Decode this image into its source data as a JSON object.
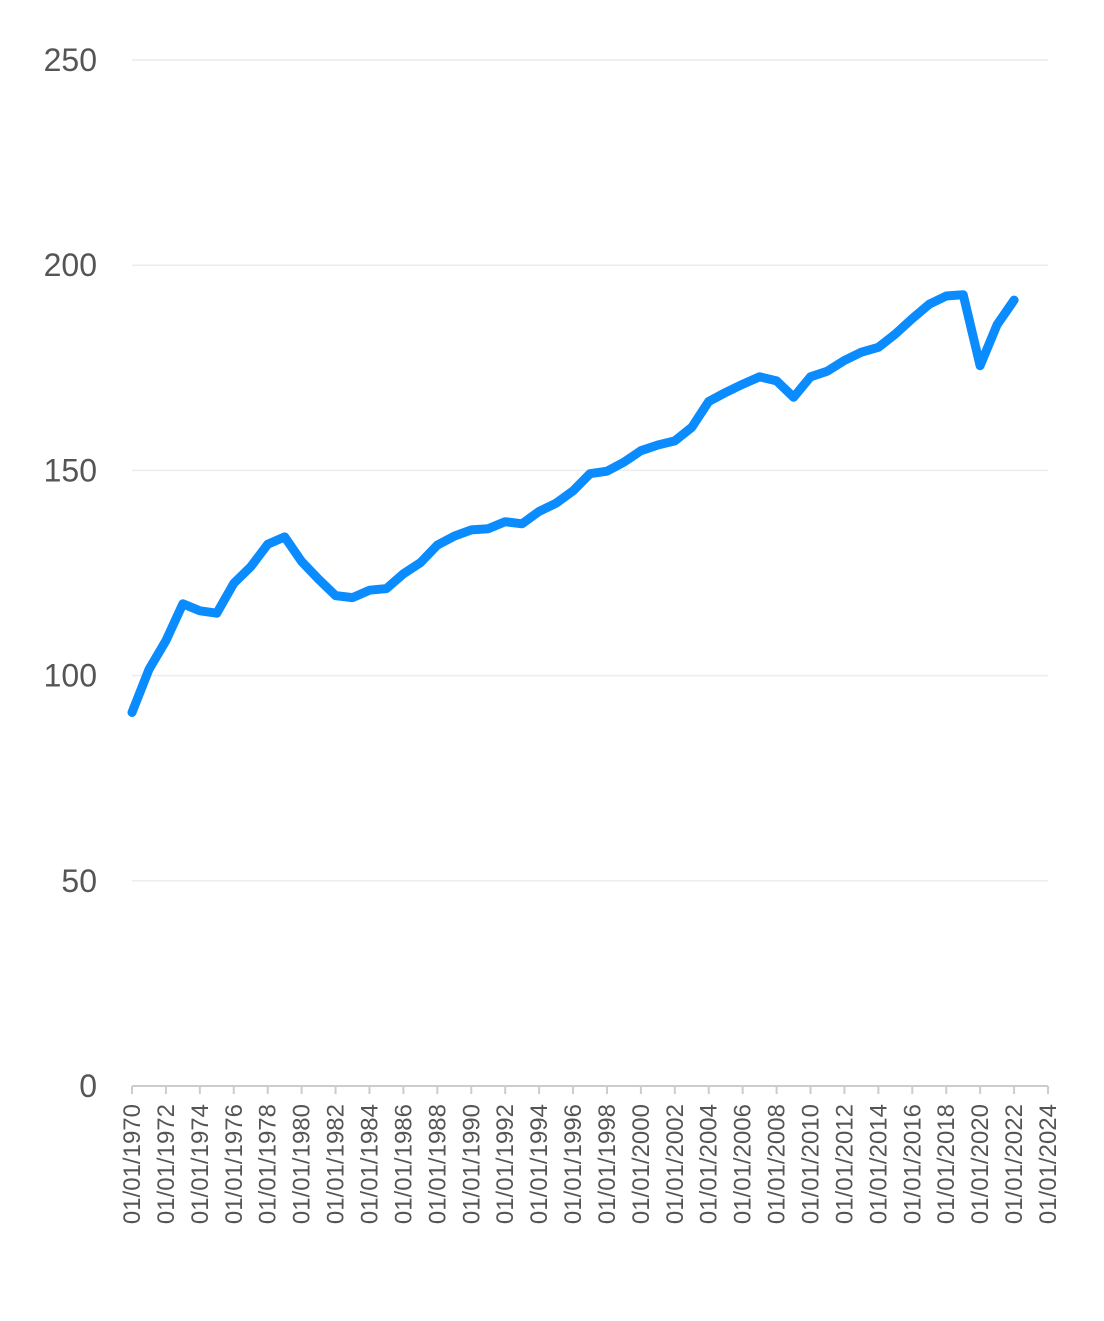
{
  "chart_data": {
    "type": "line",
    "title": "",
    "xlabel": "",
    "ylabel": "",
    "ylim": [
      0,
      250
    ],
    "yticks": [
      "0",
      "50",
      "100",
      "150",
      "200",
      "250"
    ],
    "xlim": [
      1970,
      2024
    ],
    "xticks": [
      {
        "year": 1970,
        "label": "01/01/1970"
      },
      {
        "year": 1972,
        "label": "01/01/1972"
      },
      {
        "year": 1974,
        "label": "01/01/1974"
      },
      {
        "year": 1976,
        "label": "01/01/1976"
      },
      {
        "year": 1978,
        "label": "01/01/1978"
      },
      {
        "year": 1980,
        "label": "01/01/1980"
      },
      {
        "year": 1982,
        "label": "01/01/1982"
      },
      {
        "year": 1984,
        "label": "01/01/1984"
      },
      {
        "year": 1986,
        "label": "01/01/1986"
      },
      {
        "year": 1988,
        "label": "01/01/1988"
      },
      {
        "year": 1990,
        "label": "01/01/1990"
      },
      {
        "year": 1992,
        "label": "01/01/1992"
      },
      {
        "year": 1994,
        "label": "01/01/1994"
      },
      {
        "year": 1996,
        "label": "01/01/1996"
      },
      {
        "year": 1998,
        "label": "01/01/1998"
      },
      {
        "year": 2000,
        "label": "01/01/2000"
      },
      {
        "year": 2002,
        "label": "01/01/2002"
      },
      {
        "year": 2004,
        "label": "01/01/2004"
      },
      {
        "year": 2006,
        "label": "01/01/2006"
      },
      {
        "year": 2008,
        "label": "01/01/2008"
      },
      {
        "year": 2010,
        "label": "01/01/2010"
      },
      {
        "year": 2012,
        "label": "01/01/2012"
      },
      {
        "year": 2014,
        "label": "01/01/2014"
      },
      {
        "year": 2016,
        "label": "01/01/2016"
      },
      {
        "year": 2018,
        "label": "01/01/2018"
      },
      {
        "year": 2020,
        "label": "01/01/2020"
      },
      {
        "year": 2022,
        "label": "01/01/2022"
      },
      {
        "year": 2024,
        "label": "01/01/2024"
      }
    ],
    "grid": true,
    "legend": "none",
    "series": [
      {
        "color": "#0a8cff",
        "x": [
          1970,
          1971,
          1972,
          1973,
          1974,
          1975,
          1976,
          1977,
          1978,
          1979,
          1980,
          1981,
          1982,
          1983,
          1984,
          1985,
          1986,
          1987,
          1988,
          1989,
          1990,
          1991,
          1992,
          1993,
          1994,
          1995,
          1996,
          1997,
          1998,
          1999,
          2000,
          2001,
          2002,
          2003,
          2004,
          2005,
          2006,
          2007,
          2008,
          2009,
          2010,
          2011,
          2012,
          2013,
          2014,
          2015,
          2016,
          2017,
          2018,
          2019,
          2020,
          2021,
          2022
        ],
        "values": [
          91,
          101.5,
          108.5,
          117.5,
          115.8,
          115.2,
          122.5,
          126.5,
          132,
          133.8,
          127.8,
          123.5,
          119.5,
          119,
          120.8,
          121.2,
          124.8,
          127.5,
          131.8,
          134,
          135.5,
          135.8,
          137.5,
          137,
          140,
          142,
          145,
          149.2,
          149.8,
          152,
          154.8,
          156.2,
          157.2,
          160.5,
          166.8,
          169,
          171,
          172.8,
          171.8,
          167.8,
          172.8,
          174.2,
          176.8,
          178.8,
          180,
          183.2,
          187,
          190.5,
          192.5,
          192.8,
          175.5,
          185.5,
          191.5
        ]
      }
    ]
  }
}
